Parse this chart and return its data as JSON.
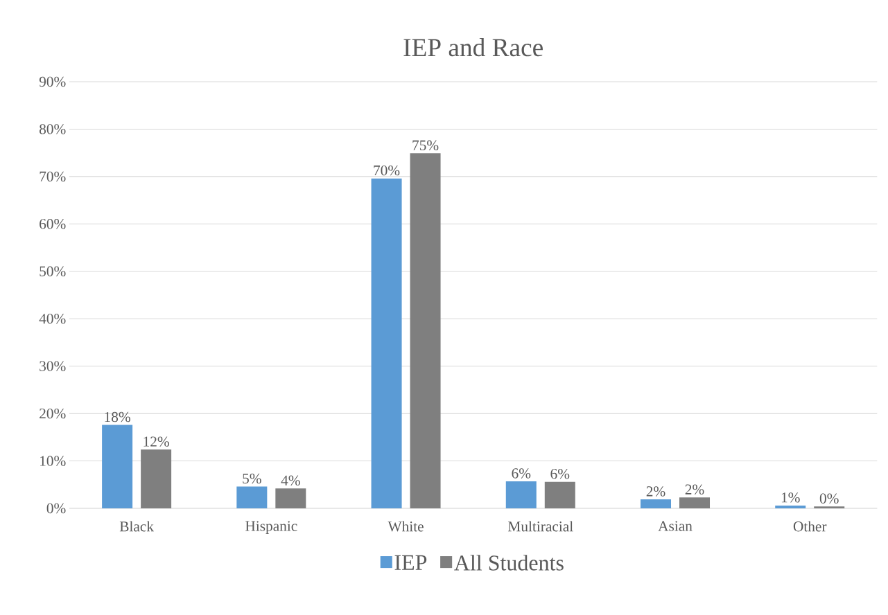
{
  "chart_data": {
    "type": "bar",
    "title": "IEP and Race",
    "categories": [
      "Black",
      "Hispanic",
      "White",
      "Multiracial",
      "Asian",
      "Other"
    ],
    "series": [
      {
        "name": "IEP",
        "color": "#5b9bd5",
        "values": [
          17.6,
          4.6,
          69.6,
          5.7,
          1.9,
          0.6
        ],
        "value_labels": [
          "18%",
          "5%",
          "70%",
          "6%",
          "2%",
          "1%"
        ]
      },
      {
        "name": "All Students",
        "color": "#7f7f7f",
        "values": [
          12.4,
          4.2,
          74.9,
          5.6,
          2.3,
          0.4
        ],
        "value_labels": [
          "12%",
          "4%",
          "75%",
          "6%",
          "2%",
          "0%"
        ]
      }
    ],
    "ylim": [
      0,
      90
    ],
    "yticks": [
      {
        "value": 0,
        "label": "0%"
      },
      {
        "value": 10,
        "label": "10%"
      },
      {
        "value": 20,
        "label": "20%"
      },
      {
        "value": 30,
        "label": "30%"
      },
      {
        "value": 40,
        "label": "40%"
      },
      {
        "value": 50,
        "label": "50%"
      },
      {
        "value": 60,
        "label": "60%"
      },
      {
        "value": 70,
        "label": "70%"
      },
      {
        "value": 80,
        "label": "80%"
      },
      {
        "value": 90,
        "label": "90%"
      }
    ],
    "grid": "y",
    "legend": "bottom"
  }
}
